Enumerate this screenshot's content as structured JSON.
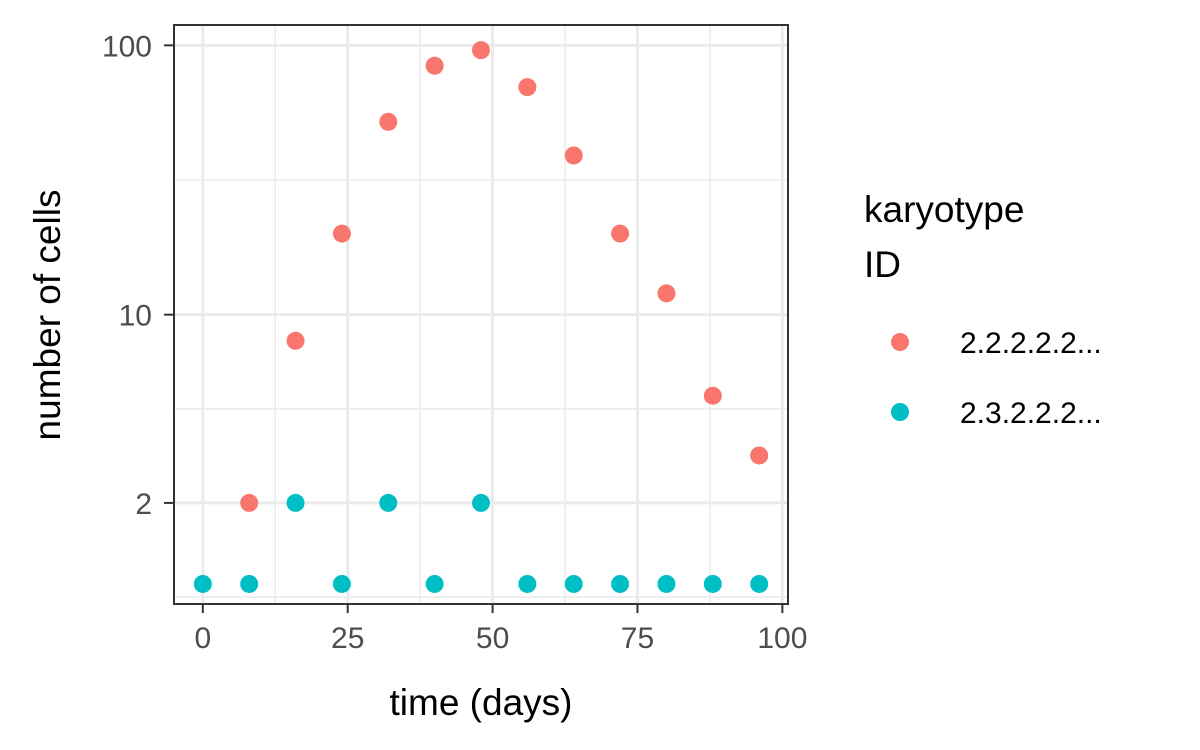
{
  "chart_data": {
    "type": "scatter",
    "xlabel": "time (days)",
    "ylabel": "number of cells",
    "x_ticks": [
      0,
      25,
      50,
      75,
      100
    ],
    "y_ticks": [
      2,
      10,
      100
    ],
    "y_scale": "log",
    "xlim": [
      -4.8,
      100.8
    ],
    "ylim": [
      0.85,
      118
    ],
    "grid": true,
    "legend_position": "right",
    "legend_title": [
      "karyotype",
      "ID"
    ],
    "series": [
      {
        "name": "2.2.2.2.2...",
        "color": "#F8766D",
        "points": [
          {
            "x": 8,
            "y": 2
          },
          {
            "x": 16,
            "y": 8
          },
          {
            "x": 24,
            "y": 20
          },
          {
            "x": 32,
            "y": 52
          },
          {
            "x": 40,
            "y": 84
          },
          {
            "x": 48,
            "y": 96
          },
          {
            "x": 56,
            "y": 70
          },
          {
            "x": 64,
            "y": 39
          },
          {
            "x": 72,
            "y": 20
          },
          {
            "x": 80,
            "y": 12
          },
          {
            "x": 88,
            "y": 5
          },
          {
            "x": 96,
            "y": 3
          }
        ]
      },
      {
        "name": "2.3.2.2.2...",
        "color": "#00BFC4",
        "points": [
          {
            "x": 0,
            "y": 1
          },
          {
            "x": 8,
            "y": 1
          },
          {
            "x": 16,
            "y": 2
          },
          {
            "x": 24,
            "y": 1
          },
          {
            "x": 32,
            "y": 2
          },
          {
            "x": 40,
            "y": 1
          },
          {
            "x": 48,
            "y": 2
          },
          {
            "x": 56,
            "y": 1
          },
          {
            "x": 64,
            "y": 1
          },
          {
            "x": 72,
            "y": 1
          },
          {
            "x": 80,
            "y": 1
          },
          {
            "x": 88,
            "y": 1
          },
          {
            "x": 96,
            "y": 1
          }
        ]
      }
    ]
  }
}
